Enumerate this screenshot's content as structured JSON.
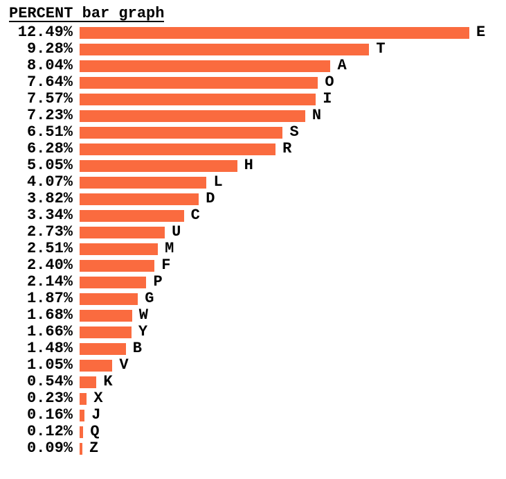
{
  "title": "PERCENT bar graph",
  "colors": {
    "bar": "#FA6B3F",
    "text": "#000000",
    "background": "#FFFFFF"
  },
  "chart_data": {
    "type": "bar",
    "orientation": "horizontal",
    "title": "PERCENT bar graph",
    "categories": [
      "E",
      "T",
      "A",
      "O",
      "I",
      "N",
      "S",
      "R",
      "H",
      "L",
      "D",
      "C",
      "U",
      "M",
      "F",
      "P",
      "G",
      "W",
      "Y",
      "B",
      "V",
      "K",
      "X",
      "J",
      "Q",
      "Z"
    ],
    "values": [
      12.49,
      9.28,
      8.04,
      7.64,
      7.57,
      7.23,
      6.51,
      6.28,
      5.05,
      4.07,
      3.82,
      3.34,
      2.73,
      2.51,
      2.4,
      2.14,
      1.87,
      1.68,
      1.66,
      1.48,
      1.05,
      0.54,
      0.23,
      0.16,
      0.12,
      0.09
    ],
    "value_labels": [
      "12.49%",
      "9.28%",
      "8.04%",
      "7.64%",
      "7.57%",
      "7.23%",
      "6.51%",
      "6.28%",
      "5.05%",
      "4.07%",
      "3.82%",
      "3.34%",
      "2.73%",
      "2.51%",
      "2.40%",
      "2.14%",
      "1.87%",
      "1.68%",
      "1.66%",
      "1.48%",
      "1.05%",
      "0.54%",
      "0.23%",
      "0.16%",
      "0.12%",
      "0.09%"
    ],
    "value_suffix": "%",
    "xlim": [
      0,
      12.49
    ],
    "grid": false,
    "legend": "none",
    "value_label_position": "left-of-bar",
    "category_label_position": "right-of-bar"
  }
}
